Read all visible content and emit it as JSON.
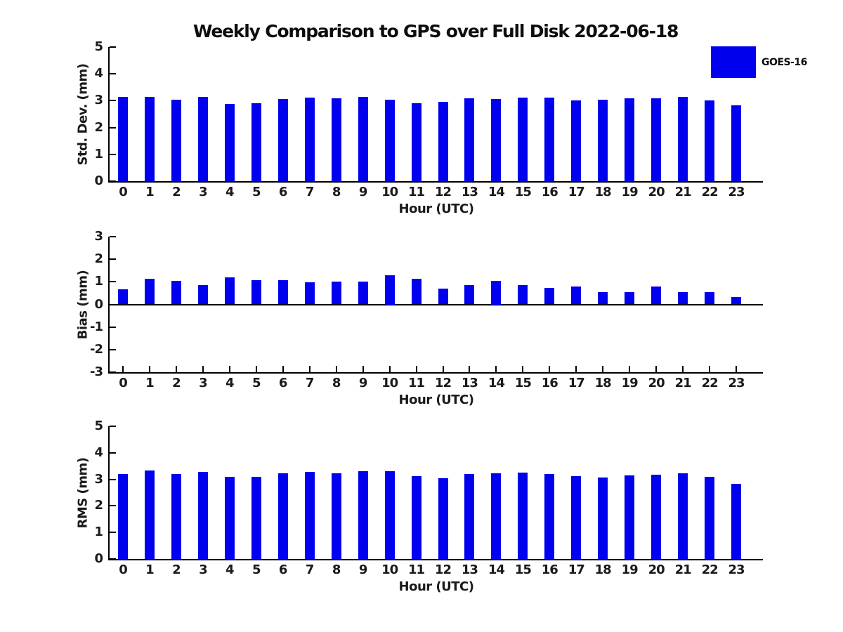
{
  "title": "Weekly Comparison to GPS over Full Disk 2022-06-18",
  "legend": {
    "label": "GOES-16",
    "color": "#0000ee"
  },
  "colors": {
    "bar": "#0000ee",
    "axis": "#000000",
    "text": "#1a1a1a"
  },
  "chart_data": [
    {
      "type": "bar",
      "ylabel": "Std. Dev. (mm)",
      "xlabel": "Hour (UTC)",
      "categories": [
        "0",
        "1",
        "2",
        "3",
        "4",
        "5",
        "6",
        "7",
        "8",
        "9",
        "10",
        "11",
        "12",
        "13",
        "14",
        "15",
        "16",
        "17",
        "18",
        "19",
        "20",
        "21",
        "22",
        "23"
      ],
      "values": [
        3.14,
        3.14,
        3.05,
        3.15,
        2.88,
        2.92,
        3.07,
        3.11,
        3.09,
        3.15,
        3.05,
        2.91,
        2.95,
        3.08,
        3.06,
        3.12,
        3.12,
        3.0,
        3.03,
        3.08,
        3.08,
        3.13,
        3.02,
        2.82
      ],
      "ylim": [
        0,
        5
      ],
      "yticks": [
        0,
        1,
        2,
        3,
        4,
        5
      ],
      "legend_entries": [
        "GOES-16"
      ],
      "legend_position": "upper right (outside top-right of axes)",
      "grid": false
    },
    {
      "type": "bar",
      "ylabel": "Bias (mm)",
      "xlabel": "Hour (UTC)",
      "categories": [
        "0",
        "1",
        "2",
        "3",
        "4",
        "5",
        "6",
        "7",
        "8",
        "9",
        "10",
        "11",
        "12",
        "13",
        "14",
        "15",
        "16",
        "17",
        "18",
        "19",
        "20",
        "21",
        "22",
        "23"
      ],
      "values": [
        0.68,
        1.13,
        1.05,
        0.85,
        1.2,
        1.07,
        1.07,
        0.97,
        1.0,
        1.0,
        1.29,
        1.13,
        0.69,
        0.86,
        1.04,
        0.86,
        0.74,
        0.8,
        0.54,
        0.54,
        0.78,
        0.54,
        0.54,
        0.32
      ],
      "ylim": [
        -3,
        3
      ],
      "yticks": [
        -3,
        -2,
        -1,
        0,
        1,
        2,
        3
      ],
      "grid": false
    },
    {
      "type": "bar",
      "ylabel": "RMS (mm)",
      "xlabel": "Hour (UTC)",
      "categories": [
        "0",
        "1",
        "2",
        "3",
        "4",
        "5",
        "6",
        "7",
        "8",
        "9",
        "10",
        "11",
        "12",
        "13",
        "14",
        "15",
        "16",
        "17",
        "18",
        "19",
        "20",
        "21",
        "22",
        "23"
      ],
      "values": [
        3.21,
        3.34,
        3.21,
        3.27,
        3.1,
        3.1,
        3.24,
        3.27,
        3.24,
        3.32,
        3.32,
        3.12,
        3.04,
        3.2,
        3.23,
        3.26,
        3.2,
        3.11,
        3.07,
        3.14,
        3.18,
        3.22,
        3.09,
        2.82
      ],
      "ylim": [
        0,
        5
      ],
      "yticks": [
        0,
        1,
        2,
        3,
        4,
        5
      ],
      "grid": false
    }
  ]
}
